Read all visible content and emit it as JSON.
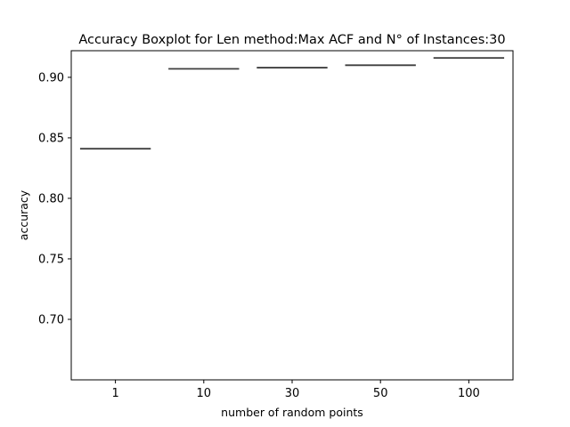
{
  "chart_data": {
    "type": "boxplot",
    "title": "Accuracy Boxplot for Len method:Max ACF and N° of Instances:30",
    "xlabel": "number of random points",
    "ylabel": "accuracy",
    "categories": [
      "1",
      "10",
      "30",
      "50",
      "100"
    ],
    "values": [
      0.841,
      0.907,
      0.908,
      0.91,
      0.916
    ],
    "ylim": [
      0.65,
      0.922
    ],
    "yticks": [
      0.7,
      0.75,
      0.8,
      0.85,
      0.9
    ],
    "ytick_labels": [
      "0.70",
      "0.75",
      "0.80",
      "0.85",
      "0.90"
    ],
    "grid": false,
    "legend": "none",
    "colors": {
      "box_line": "#3f3f3f",
      "axes": "#000000"
    }
  }
}
